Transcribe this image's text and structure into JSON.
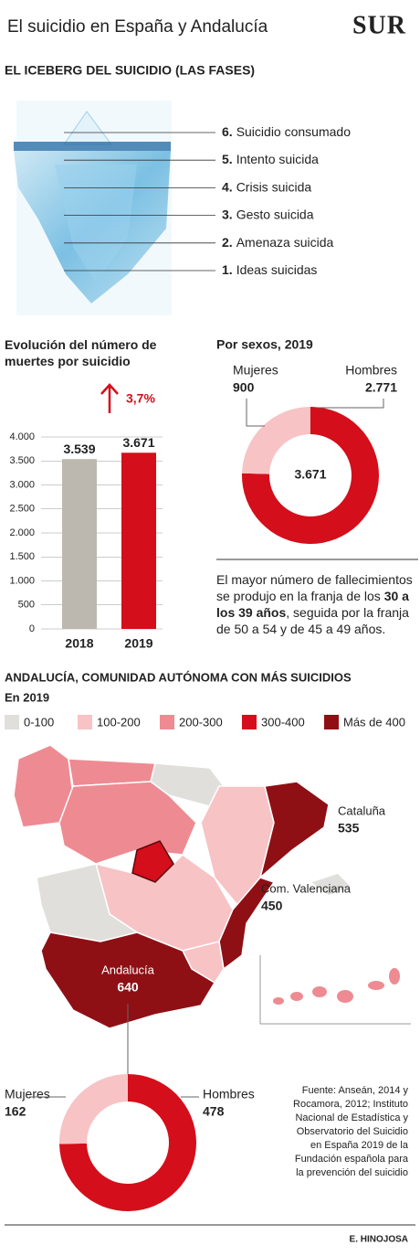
{
  "header": {
    "title": "El suicidio en España y Andalucía",
    "logo": "SUR"
  },
  "iceberg": {
    "title": "EL ICEBERG DEL SUICIDIO (LAS FASES)",
    "phases": [
      {
        "number": "6.",
        "label": "Suicidio consumado"
      },
      {
        "number": "5.",
        "label": "Intento suicida"
      },
      {
        "number": "4.",
        "label": "Crisis suicida"
      },
      {
        "number": "3.",
        "label": "Gesto suicida"
      },
      {
        "number": "2.",
        "label": "Amenaza suicida"
      },
      {
        "number": "1.",
        "label": "Ideas suicidas"
      }
    ]
  },
  "chart_data": [
    {
      "type": "bar",
      "title": "Evolución del número de muertes por suicidio",
      "categories": [
        "2018",
        "2019"
      ],
      "values": [
        3539,
        3671
      ],
      "value_labels": [
        "3.539",
        "3.671"
      ],
      "colors": [
        "#bcb8b0",
        "#d40e1a"
      ],
      "annotation": "3,7%",
      "ylim": [
        0,
        4000
      ],
      "yticks": [
        0,
        500,
        {
          "value": 1000,
          "label": "1.000"
        },
        {
          "value": 1500,
          "label": "1.500"
        },
        {
          "value": 2000,
          "label": "2.000"
        },
        {
          "value": 2500,
          "label": "2.500"
        },
        {
          "value": 3000,
          "label": "3.000"
        },
        {
          "value": 3500,
          "label": "3.500"
        },
        {
          "value": 4000,
          "label": "4.000"
        }
      ],
      "grid": true
    },
    {
      "type": "donut",
      "title": "Por sexos, 2019",
      "categories": [
        "Mujeres",
        "Hombres"
      ],
      "values": [
        900,
        2771
      ],
      "value_labels": [
        "900",
        "2.771"
      ],
      "colors": [
        "#f7c3c5",
        "#d40e1a"
      ],
      "center_label": "3.671"
    },
    {
      "type": "donut",
      "categories": [
        "Mujeres",
        "Hombres"
      ],
      "values": [
        162,
        478
      ],
      "colors": [
        "#f7c3c5",
        "#d40e1a"
      ]
    }
  ],
  "note": {
    "before": "El mayor número de fallecimientos se produjo en la franja de los ",
    "highlight": "30 a los 39 años",
    "after": ", seguida por la franja de 50 a 54 y de 45 a 49 años."
  },
  "map": {
    "title": "ANDALUCÍA, COMUNIDAD AUTÓNOMA CON MÁS SUICIDIOS",
    "subtitle": "En 2019",
    "legend": [
      {
        "label": "0-100",
        "color": "#e0dfdc"
      },
      {
        "label": "100-200",
        "color": "#f7c3c5"
      },
      {
        "label": "200-300",
        "color": "#ee8b92"
      },
      {
        "label": "300-400",
        "color": "#d40e1a"
      },
      {
        "label": "Más de 400",
        "color": "#8e1014"
      }
    ],
    "regions": [
      {
        "name": "Cataluña",
        "value": 535
      },
      {
        "name": "Com. Valenciana",
        "value": 450
      },
      {
        "name": "Andalucía",
        "value": 640
      }
    ]
  },
  "source": "Fuente: Anseán, 2014 y Rocamora, 2012; Instituto Nacional de Estadística y Observatorio del Suicidio en España 2019 de la Fundación española para la prevención del suicidio",
  "credit": "E. HINOJOSA"
}
